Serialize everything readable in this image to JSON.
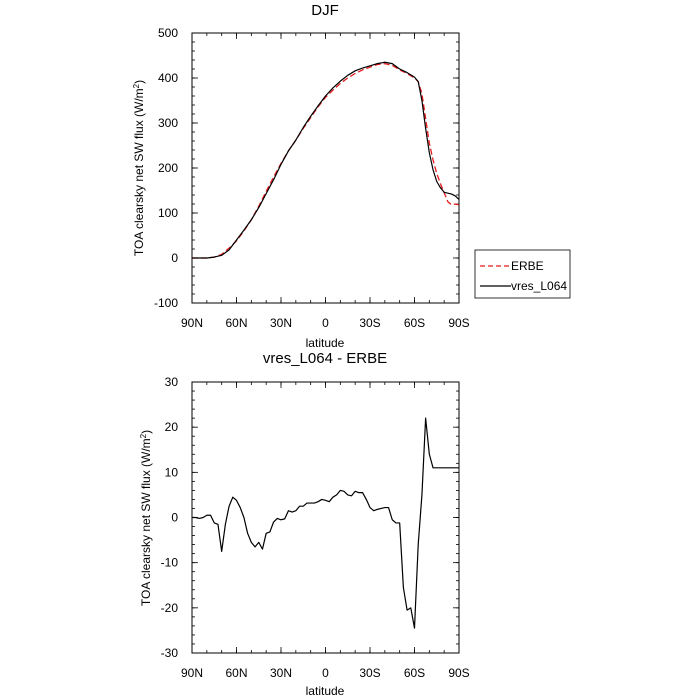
{
  "chart_data": [
    {
      "type": "line",
      "title": "DJF",
      "xlabel": "latitude",
      "ylabel": "TOA clearsky net SW flux (W/m",
      "ylabel_sup": "2",
      "ylabel_tail": ")",
      "xlim": [
        90,
        -90
      ],
      "ylim": [
        -100,
        500
      ],
      "xticks": [
        90,
        60,
        30,
        0,
        -30,
        -60,
        -90
      ],
      "xtick_labels": [
        "90N",
        "60N",
        "30N",
        "0",
        "30S",
        "60S",
        "90S"
      ],
      "yticks": [
        -100,
        0,
        100,
        200,
        300,
        400,
        500
      ],
      "ytick_labels": [
        "-100",
        "0",
        "100",
        "200",
        "300",
        "400",
        "500"
      ],
      "legend_position": "outside-right",
      "series": [
        {
          "name": "ERBE",
          "color": "#e41a1c",
          "dash": "dashed",
          "points": [
            [
              90,
              0
            ],
            [
              85,
              0
            ],
            [
              80,
              0
            ],
            [
              75,
              2
            ],
            [
              70,
              8
            ],
            [
              65,
              22
            ],
            [
              60,
              38
            ],
            [
              55,
              60
            ],
            [
              50,
              85
            ],
            [
              45,
              115
            ],
            [
              40,
              148
            ],
            [
              35,
              180
            ],
            [
              30,
              210
            ],
            [
              25,
              238
            ],
            [
              20,
              262
            ],
            [
              15,
              288
            ],
            [
              10,
              312
            ],
            [
              5,
              336
            ],
            [
              0,
              357
            ],
            [
              -5,
              373
            ],
            [
              -10,
              388
            ],
            [
              -15,
              400
            ],
            [
              -20,
              410
            ],
            [
              -25,
              418
            ],
            [
              -30,
              424
            ],
            [
              -35,
              430
            ],
            [
              -40,
              432
            ],
            [
              -45,
              428
            ],
            [
              -50,
              418
            ],
            [
              -55,
              410
            ],
            [
              -60,
              400
            ],
            [
              -62.5,
              392
            ],
            [
              -65,
              365
            ],
            [
              -67.5,
              310
            ],
            [
              -70,
              255
            ],
            [
              -72.5,
              218
            ],
            [
              -75,
              188
            ],
            [
              -77.5,
              165
            ],
            [
              -80,
              145
            ],
            [
              -82.5,
              125
            ],
            [
              -85,
              118
            ],
            [
              -87.5,
              120
            ],
            [
              -90,
              118
            ]
          ]
        },
        {
          "name": "vres_L064",
          "color": "#000000",
          "dash": "solid",
          "points": [
            [
              90,
              0
            ],
            [
              85,
              0
            ],
            [
              80,
              0
            ],
            [
              75,
              2
            ],
            [
              70,
              6
            ],
            [
              65,
              18
            ],
            [
              60,
              40
            ],
            [
              55,
              62
            ],
            [
              50,
              85
            ],
            [
              45,
              112
            ],
            [
              40,
              143
            ],
            [
              35,
              174
            ],
            [
              30,
              208
            ],
            [
              25,
              238
            ],
            [
              20,
              262
            ],
            [
              15,
              290
            ],
            [
              10,
              315
            ],
            [
              5,
              338
            ],
            [
              0,
              360
            ],
            [
              -5,
              378
            ],
            [
              -10,
              393
            ],
            [
              -15,
              406
            ],
            [
              -20,
              416
            ],
            [
              -25,
              422
            ],
            [
              -30,
              427
            ],
            [
              -35,
              432
            ],
            [
              -40,
              435
            ],
            [
              -45,
              432
            ],
            [
              -50,
              420
            ],
            [
              -55,
              412
            ],
            [
              -60,
              402
            ],
            [
              -62.5,
              392
            ],
            [
              -65,
              350
            ],
            [
              -67.5,
              288
            ],
            [
              -70,
              234
            ],
            [
              -72.5,
              196
            ],
            [
              -75,
              170
            ],
            [
              -77.5,
              156
            ],
            [
              -80,
              146
            ],
            [
              -82.5,
              144
            ],
            [
              -85,
              142
            ],
            [
              -87.5,
              138
            ],
            [
              -90,
              130
            ]
          ]
        }
      ]
    },
    {
      "type": "line",
      "title": "vres_L064 - ERBE",
      "xlabel": "latitude",
      "ylabel": "TOA clearsky net SW flux (W/m",
      "ylabel_sup": "2",
      "ylabel_tail": ")",
      "xlim": [
        90,
        -90
      ],
      "ylim": [
        -30,
        30
      ],
      "xticks": [
        90,
        60,
        30,
        0,
        -30,
        -60,
        -90
      ],
      "xtick_labels": [
        "90N",
        "60N",
        "30N",
        "0",
        "30S",
        "60S",
        "90S"
      ],
      "yticks": [
        -30,
        -20,
        -10,
        0,
        10,
        20,
        30
      ],
      "ytick_labels": [
        "-30",
        "-20",
        "-10",
        "0",
        "10",
        "20",
        "30"
      ],
      "series": [
        {
          "color": "#000000",
          "dash": "solid",
          "points": [
            [
              90,
              0
            ],
            [
              87.5,
              0
            ],
            [
              85,
              -0.2
            ],
            [
              82.5,
              0
            ],
            [
              80,
              0.5
            ],
            [
              77.5,
              0.5
            ],
            [
              75,
              -1.2
            ],
            [
              72.5,
              -1.5
            ],
            [
              70,
              -7.5
            ],
            [
              67.5,
              -1.5
            ],
            [
              65,
              2.5
            ],
            [
              62.5,
              4.5
            ],
            [
              60,
              3.8
            ],
            [
              57.5,
              2.2
            ],
            [
              55,
              0
            ],
            [
              52.5,
              -3.5
            ],
            [
              50,
              -5.5
            ],
            [
              47.5,
              -6.5
            ],
            [
              45,
              -5.5
            ],
            [
              42.5,
              -7
            ],
            [
              40,
              -3.5
            ],
            [
              37.5,
              -3.2
            ],
            [
              35,
              -1
            ],
            [
              32.5,
              -0.2
            ],
            [
              30,
              -0.5
            ],
            [
              27.5,
              -0.3
            ],
            [
              25,
              1.5
            ],
            [
              22.5,
              1.2
            ],
            [
              20,
              1.5
            ],
            [
              17.5,
              2.5
            ],
            [
              15,
              2.5
            ],
            [
              12.5,
              3.2
            ],
            [
              10,
              3.2
            ],
            [
              7.5,
              3.2
            ],
            [
              5,
              3.5
            ],
            [
              2.5,
              4
            ],
            [
              0,
              3.8
            ],
            [
              -2.5,
              3.5
            ],
            [
              -5,
              4.5
            ],
            [
              -7.5,
              5
            ],
            [
              -10,
              6
            ],
            [
              -12.5,
              5.8
            ],
            [
              -15,
              5
            ],
            [
              -17.5,
              4.8
            ],
            [
              -20,
              5.8
            ],
            [
              -22.5,
              5.5
            ],
            [
              -25,
              5.5
            ],
            [
              -27.5,
              4
            ],
            [
              -30,
              2.2
            ],
            [
              -32.5,
              1.5
            ],
            [
              -35,
              1.8
            ],
            [
              -37.5,
              2
            ],
            [
              -40,
              2.2
            ],
            [
              -42.5,
              2.2
            ],
            [
              -45,
              -0.5
            ],
            [
              -47.5,
              -1.2
            ],
            [
              -50,
              -1.2
            ],
            [
              -52.5,
              -15.5
            ],
            [
              -55,
              -20.5
            ],
            [
              -57.5,
              -20
            ],
            [
              -60,
              -24.5
            ],
            [
              -62.5,
              -6
            ],
            [
              -65,
              5
            ],
            [
              -67.5,
              22
            ],
            [
              -70,
              14
            ],
            [
              -72.5,
              11
            ],
            [
              -90,
              11
            ]
          ]
        }
      ]
    }
  ]
}
